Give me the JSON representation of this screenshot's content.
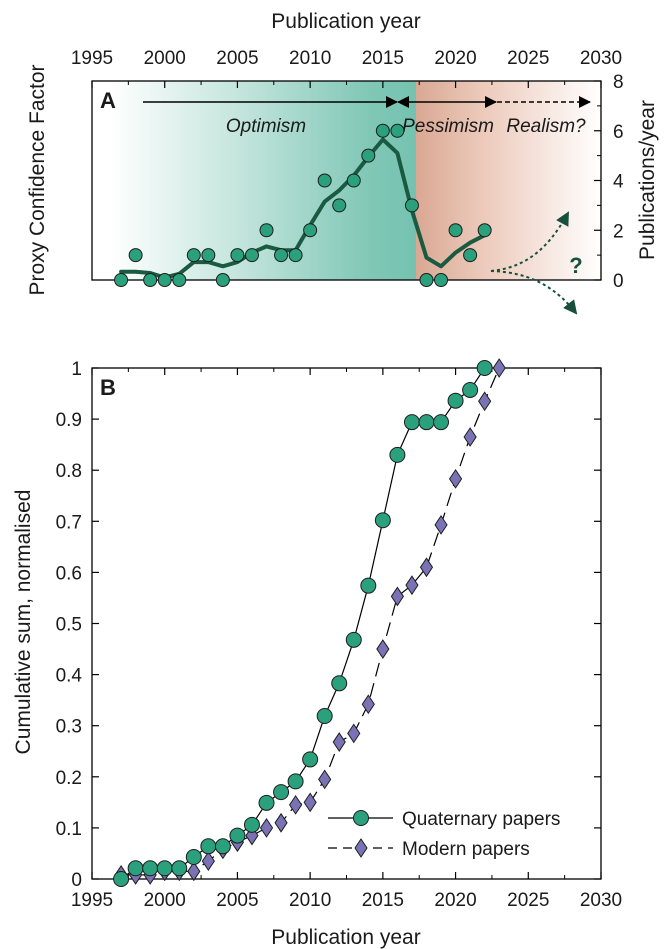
{
  "colors": {
    "optimism": "#2e9e88",
    "pessimism": "#c98a73",
    "trend": "#1a5a40",
    "quaternary_marker": "#2aa07c",
    "modern_marker": "#7b72b6",
    "marker_edge": "#1e1e1e"
  },
  "chart_data": [
    {
      "panel": "A",
      "type": "scatter",
      "title": "",
      "xlabel": "Publication year",
      "ylabel_left": "Proxy Confidence Factor",
      "ylabel_right": "Publications/year",
      "xlim": [
        1995,
        2030
      ],
      "ylim": [
        0,
        8
      ],
      "x_ticks": [
        "1995",
        "2000",
        "2005",
        "2010",
        "2015",
        "2020",
        "2025",
        "2030"
      ],
      "y_ticks": [
        "0",
        "2",
        "4",
        "6",
        "8"
      ],
      "grid": false,
      "series": [
        {
          "type": "scatter",
          "x": [
            1997,
            1998,
            1999,
            2000,
            2001,
            2002,
            2003,
            2004,
            2005,
            2006,
            2007,
            2008,
            2009,
            2010,
            2011,
            2012,
            2013,
            2014,
            2015,
            2016,
            2017,
            2018,
            2019,
            2020,
            2021,
            2022
          ],
          "y": [
            0,
            1,
            0,
            0,
            0,
            1,
            1,
            0,
            1,
            1,
            2,
            1,
            1,
            2,
            4,
            3,
            4,
            5,
            6,
            6,
            3,
            0,
            0,
            2,
            1,
            2
          ]
        },
        {
          "type": "line",
          "x": [
            1997,
            1998,
            1999,
            2000,
            2001,
            2002,
            2003,
            2004,
            2005,
            2006,
            2007,
            2008,
            2009,
            2010,
            2011,
            2012,
            2013,
            2014,
            2015,
            2016,
            2017,
            2018,
            2019,
            2020,
            2021,
            2022
          ],
          "y": [
            0.33,
            0.33,
            0.28,
            0.1,
            0.25,
            0.72,
            0.72,
            0.55,
            0.72,
            1.1,
            1.35,
            1.2,
            1.2,
            2.2,
            3.15,
            3.6,
            4.2,
            4.95,
            5.65,
            5.1,
            2.8,
            0.9,
            0.55,
            1.1,
            1.5,
            1.8
          ]
        }
      ],
      "phases": [
        {
          "label": "Optimism",
          "from": 1997,
          "to": 2016
        },
        {
          "label": "Pessimism",
          "from": 2016,
          "to": 2022.5
        },
        {
          "label": "Realism?",
          "from": 2022.5,
          "to": 2029
        }
      ],
      "annotation": "?"
    },
    {
      "panel": "B",
      "type": "line",
      "title": "",
      "xlabel": "Publication year",
      "ylabel": "Cumulative sum, normalised",
      "xlim": [
        1995,
        2030
      ],
      "ylim": [
        0,
        1
      ],
      "x_ticks": [
        "1995",
        "2000",
        "2005",
        "2010",
        "2015",
        "2020",
        "2025",
        "2030"
      ],
      "y_ticks": [
        "0",
        "0.1",
        "0.2",
        "0.3",
        "0.4",
        "0.5",
        "0.6",
        "0.7",
        "0.8",
        "0.9",
        "1"
      ],
      "grid": false,
      "legend_position": "bottom-right",
      "series": [
        {
          "name": "Quaternary papers",
          "marker": "circle",
          "line": "solid",
          "x": [
            1997,
            1998,
            1999,
            2000,
            2001,
            2002,
            2003,
            2004,
            2005,
            2006,
            2007,
            2008,
            2009,
            2010,
            2011,
            2012,
            2013,
            2014,
            2015,
            2016,
            2017,
            2018,
            2019,
            2020,
            2021,
            2022
          ],
          "values": [
            0,
            0.021,
            0.021,
            0.021,
            0.021,
            0.043,
            0.064,
            0.064,
            0.085,
            0.106,
            0.149,
            0.17,
            0.191,
            0.234,
            0.319,
            0.383,
            0.468,
            0.574,
            0.702,
            0.83,
            0.894,
            0.894,
            0.894,
            0.936,
            0.957,
            1.0
          ]
        },
        {
          "name": "Modern papers",
          "marker": "diamond",
          "line": "dashed",
          "x": [
            1997,
            1998,
            1999,
            2000,
            2001,
            2002,
            2003,
            2004,
            2005,
            2006,
            2007,
            2008,
            2009,
            2010,
            2011,
            2012,
            2013,
            2014,
            2015,
            2016,
            2017,
            2018,
            2019,
            2020,
            2021,
            2022,
            2023
          ],
          "values": [
            0.008,
            0.008,
            0.008,
            0.015,
            0.015,
            0.015,
            0.035,
            0.058,
            0.072,
            0.085,
            0.1,
            0.11,
            0.145,
            0.15,
            0.195,
            0.268,
            0.285,
            0.342,
            0.45,
            0.553,
            0.575,
            0.61,
            0.693,
            0.783,
            0.865,
            0.935,
            1.0
          ]
        }
      ]
    }
  ]
}
